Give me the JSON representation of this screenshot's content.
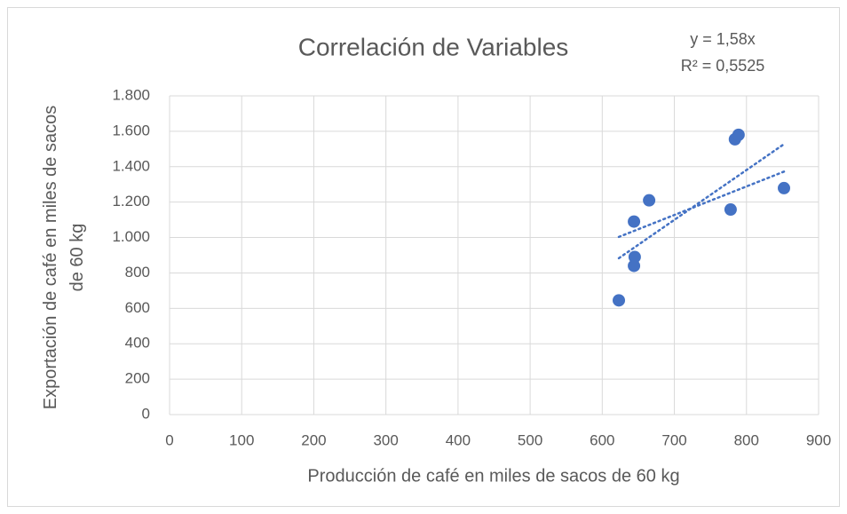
{
  "chart_data": {
    "type": "scatter",
    "title": "Correlación de Variables",
    "equation": "y = 1,58x",
    "r_squared": "R² = 0,5525",
    "x_label": "Producción de café en miles de sacos de 60 kg",
    "y_label": "Exportación de café en miles de sacos de 60 kg",
    "color": "#4472c4",
    "grid": true,
    "x": [
      623,
      644,
      645,
      644,
      665,
      778,
      784,
      789,
      852
    ],
    "values": [
      645,
      1090,
      890,
      840,
      1210,
      1158,
      1555,
      1580,
      1279
    ],
    "xlim": [
      0,
      900
    ],
    "xticks": [
      0,
      100,
      200,
      300,
      400,
      500,
      600,
      700,
      800,
      900
    ],
    "ylim": [
      0,
      1800
    ],
    "yticks": [
      0,
      200,
      400,
      600,
      800,
      {
        "value": 1000,
        "label": "1.000"
      },
      {
        "value": 1200,
        "label": "1.200"
      },
      {
        "value": 1400,
        "label": "1.400"
      },
      {
        "value": 1600,
        "label": "1.600"
      },
      {
        "value": 1800,
        "label": "1.800"
      }
    ]
  }
}
